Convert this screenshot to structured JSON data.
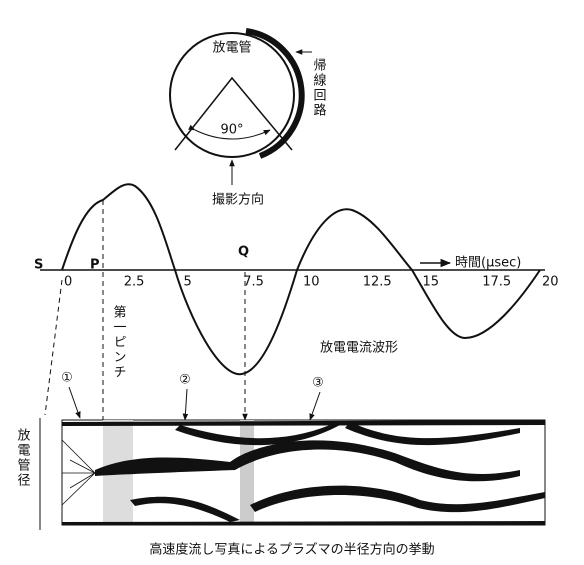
{
  "tube": {
    "label": "放電管",
    "angle": "90°",
    "return_circuit": "帰線回路",
    "direction": "撮影方向"
  },
  "waveform": {
    "points": [
      "S",
      "P",
      "Q"
    ],
    "axis_label": "時間(μsec)",
    "ticks": [
      "0",
      "2.5",
      "5",
      "7.5",
      "10",
      "12.5",
      "15",
      "17.5",
      "20"
    ],
    "pinch": "第一ピンチ",
    "caption": "放電電流波形"
  },
  "photo": {
    "markers": [
      "①",
      "②",
      "③"
    ],
    "axis_label": "放電管径"
  },
  "caption": "高速度流し写真によるプラズマの半径方向の挙動"
}
